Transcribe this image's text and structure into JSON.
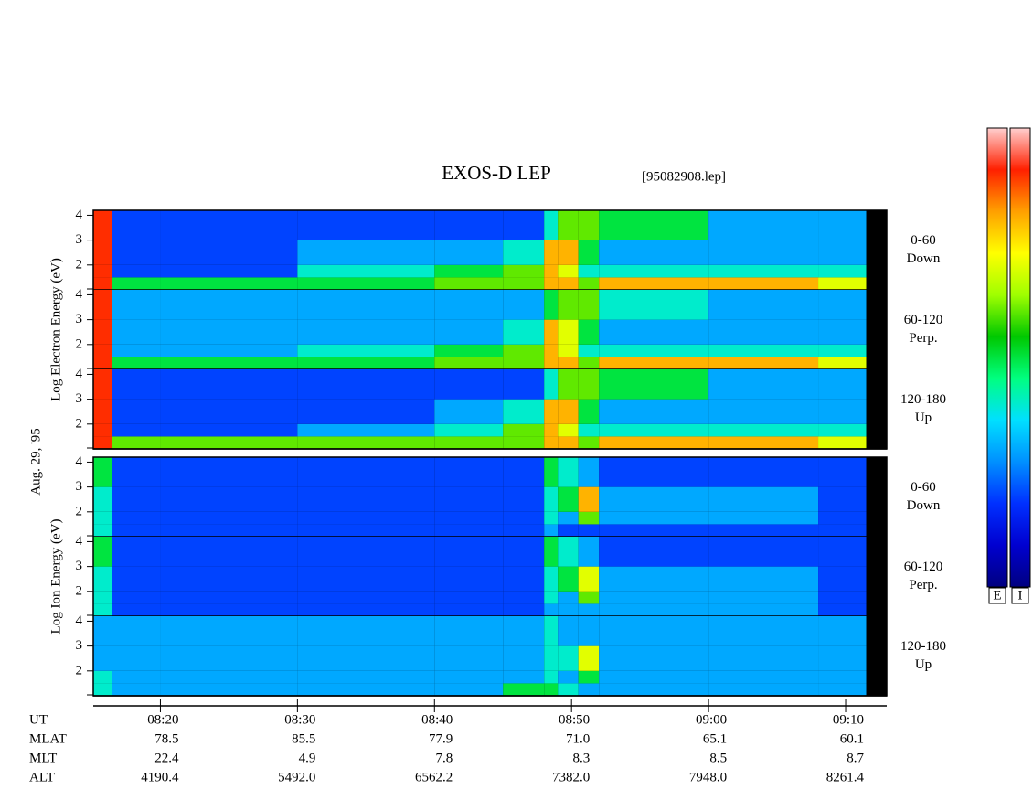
{
  "chart_data": {
    "type": "heatmap",
    "title": "EXOS-D LEP",
    "subtitle": "[95082908.lep]",
    "date_label": "Aug. 29, '95",
    "xlim": [
      15.1,
      73
    ],
    "xticks": [
      {
        "value": 20,
        "label": "08:20"
      },
      {
        "value": 30,
        "label": "08:30"
      },
      {
        "value": 40,
        "label": "08:40"
      },
      {
        "value": 50,
        "label": "08:50"
      },
      {
        "value": 60,
        "label": "09:00"
      },
      {
        "value": 70,
        "label": "09:10"
      }
    ],
    "x_bins": [
      15.1,
      16.5,
      20,
      30,
      40,
      45,
      48,
      49,
      50.5,
      52,
      60,
      68,
      71.5
    ],
    "y_bins": [
      1,
      1.5,
      2,
      3,
      4.2
    ],
    "ylim": [
      1,
      4.2
    ],
    "yticks": [
      2,
      3,
      4
    ],
    "zlim": [
      0,
      10
    ],
    "colormap": [
      "#000080",
      "#0000d0",
      "#0030ff",
      "#0090ff",
      "#00e0ff",
      "#00ff80",
      "#00c800",
      "#a0ff00",
      "#ffff00",
      "#ffa000",
      "#ff2000",
      "#ffd0d0"
    ],
    "groups": [
      {
        "label": "Log Electron Energy (eV)",
        "panels": [
          {
            "name": [
              "0-60",
              "Down"
            ],
            "z": [
              [
                9,
                5,
                5,
                5,
                6,
                6,
                8,
                8,
                6,
                8,
                8,
                7
              ],
              [
                9,
                2,
                2,
                4,
                5,
                6,
                8,
                7,
                4,
                4,
                4,
                4
              ],
              [
                9,
                2,
                2,
                3,
                3,
                4,
                8,
                8,
                5,
                3,
                3,
                3
              ],
              [
                9,
                2,
                2,
                2,
                2,
                2,
                4,
                6,
                6,
                5,
                3,
                3
              ]
            ]
          },
          {
            "name": [
              "60-120",
              "Perp."
            ],
            "z": [
              [
                9,
                5,
                5,
                5,
                6,
                6,
                8,
                8,
                6,
                8,
                8,
                7
              ],
              [
                9,
                3,
                3,
                4,
                5,
                6,
                8,
                7,
                4,
                4,
                4,
                4
              ],
              [
                9,
                3,
                3,
                3,
                3,
                4,
                8,
                7,
                5,
                3,
                3,
                3
              ],
              [
                9,
                3,
                3,
                3,
                3,
                3,
                5,
                6,
                6,
                4,
                3,
                3
              ]
            ]
          },
          {
            "name": [
              "120-180",
              "Up"
            ],
            "z": [
              [
                9,
                6,
                6,
                6,
                6,
                6,
                8,
                8,
                6,
                8,
                8,
                7
              ],
              [
                9,
                2,
                2,
                3,
                4,
                6,
                8,
                7,
                4,
                4,
                4,
                4
              ],
              [
                9,
                2,
                2,
                2,
                3,
                4,
                8,
                8,
                5,
                3,
                3,
                3
              ],
              [
                9,
                2,
                2,
                2,
                2,
                2,
                4,
                6,
                6,
                5,
                3,
                3
              ]
            ]
          }
        ]
      },
      {
        "label": "Log Ion Energy (eV)",
        "panels": [
          {
            "name": [
              "0-60",
              "Down"
            ],
            "z": [
              [
                4,
                2,
                2,
                2,
                2,
                2,
                3,
                2,
                2,
                2,
                2,
                2
              ],
              [
                4,
                2,
                2,
                2,
                2,
                2,
                4,
                3,
                6,
                3,
                3,
                2
              ],
              [
                4,
                2,
                2,
                2,
                2,
                2,
                4,
                5,
                8,
                3,
                3,
                2
              ],
              [
                5,
                2,
                2,
                2,
                2,
                2,
                5,
                4,
                3,
                2,
                2,
                2
              ]
            ]
          },
          {
            "name": [
              "60-120",
              "Perp."
            ],
            "z": [
              [
                4,
                2,
                2,
                2,
                2,
                2,
                3,
                3,
                3,
                3,
                3,
                2
              ],
              [
                4,
                2,
                2,
                2,
                2,
                2,
                4,
                3,
                6,
                3,
                3,
                2
              ],
              [
                4,
                2,
                2,
                2,
                2,
                2,
                4,
                5,
                7,
                3,
                3,
                2
              ],
              [
                5,
                2,
                2,
                2,
                2,
                2,
                5,
                4,
                3,
                2,
                2,
                2
              ]
            ]
          },
          {
            "name": [
              "120-180",
              "Up"
            ],
            "z": [
              [
                4,
                3,
                3,
                3,
                3,
                5,
                5,
                4,
                3,
                3,
                3,
                3
              ],
              [
                4,
                3,
                3,
                3,
                3,
                3,
                4,
                3,
                5,
                3,
                3,
                3
              ],
              [
                3,
                3,
                3,
                3,
                3,
                3,
                4,
                4,
                7,
                3,
                3,
                3
              ],
              [
                3,
                3,
                3,
                3,
                3,
                3,
                4,
                3,
                3,
                3,
                3,
                3
              ]
            ]
          }
        ]
      }
    ],
    "ephemeris": {
      "labels": [
        "UT",
        "MLAT",
        "MLT",
        "ALT"
      ],
      "rows": [
        [
          "78.5",
          "85.5",
          "77.9",
          "71.0",
          "65.1",
          "60.1"
        ],
        [
          "22.4",
          "4.9",
          "7.8",
          "8.3",
          "8.5",
          "8.7"
        ],
        [
          "4190.4",
          "5492.0",
          "6562.2",
          "7382.0",
          "7948.0",
          "8261.4"
        ]
      ]
    },
    "colorbar_labels": [
      "E",
      "I"
    ]
  }
}
